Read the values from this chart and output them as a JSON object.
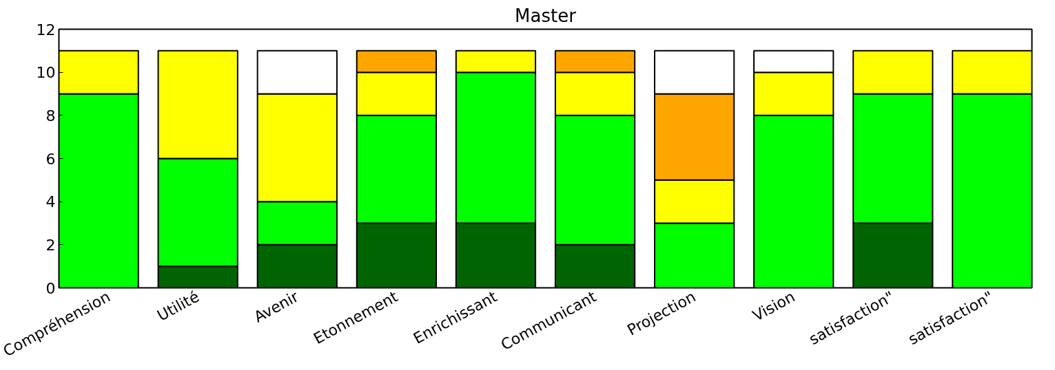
{
  "chart_data": {
    "type": "bar",
    "title": "Master",
    "stacked": true,
    "categories": [
      "Compréhension",
      "Utilité",
      "Avenir",
      "Etonnement",
      "Enrichissant",
      "Communicant",
      "Projection",
      "Vision",
      "satisfaction\"",
      "satisfaction\""
    ],
    "series": [
      {
        "color": "#006400",
        "values": [
          null,
          1,
          2,
          3,
          3,
          2,
          null,
          null,
          3,
          null
        ]
      },
      {
        "color": "#00ff00",
        "values": [
          9,
          5,
          2,
          5,
          7,
          6,
          3,
          8,
          6,
          9
        ]
      },
      {
        "color": "#ffff00",
        "values": [
          2,
          5,
          5,
          2,
          1,
          2,
          2,
          2,
          2,
          2
        ]
      },
      {
        "color": "#ffa500",
        "values": [
          null,
          null,
          null,
          1,
          null,
          1,
          4,
          null,
          null,
          null
        ]
      },
      {
        "color": "#ffffff",
        "values": [
          null,
          null,
          2,
          null,
          null,
          null,
          2,
          1,
          null,
          null
        ]
      }
    ],
    "ylim": [
      0,
      12
    ],
    "yticks": [
      0,
      2,
      4,
      6,
      8,
      10,
      12
    ],
    "grid": false
  }
}
